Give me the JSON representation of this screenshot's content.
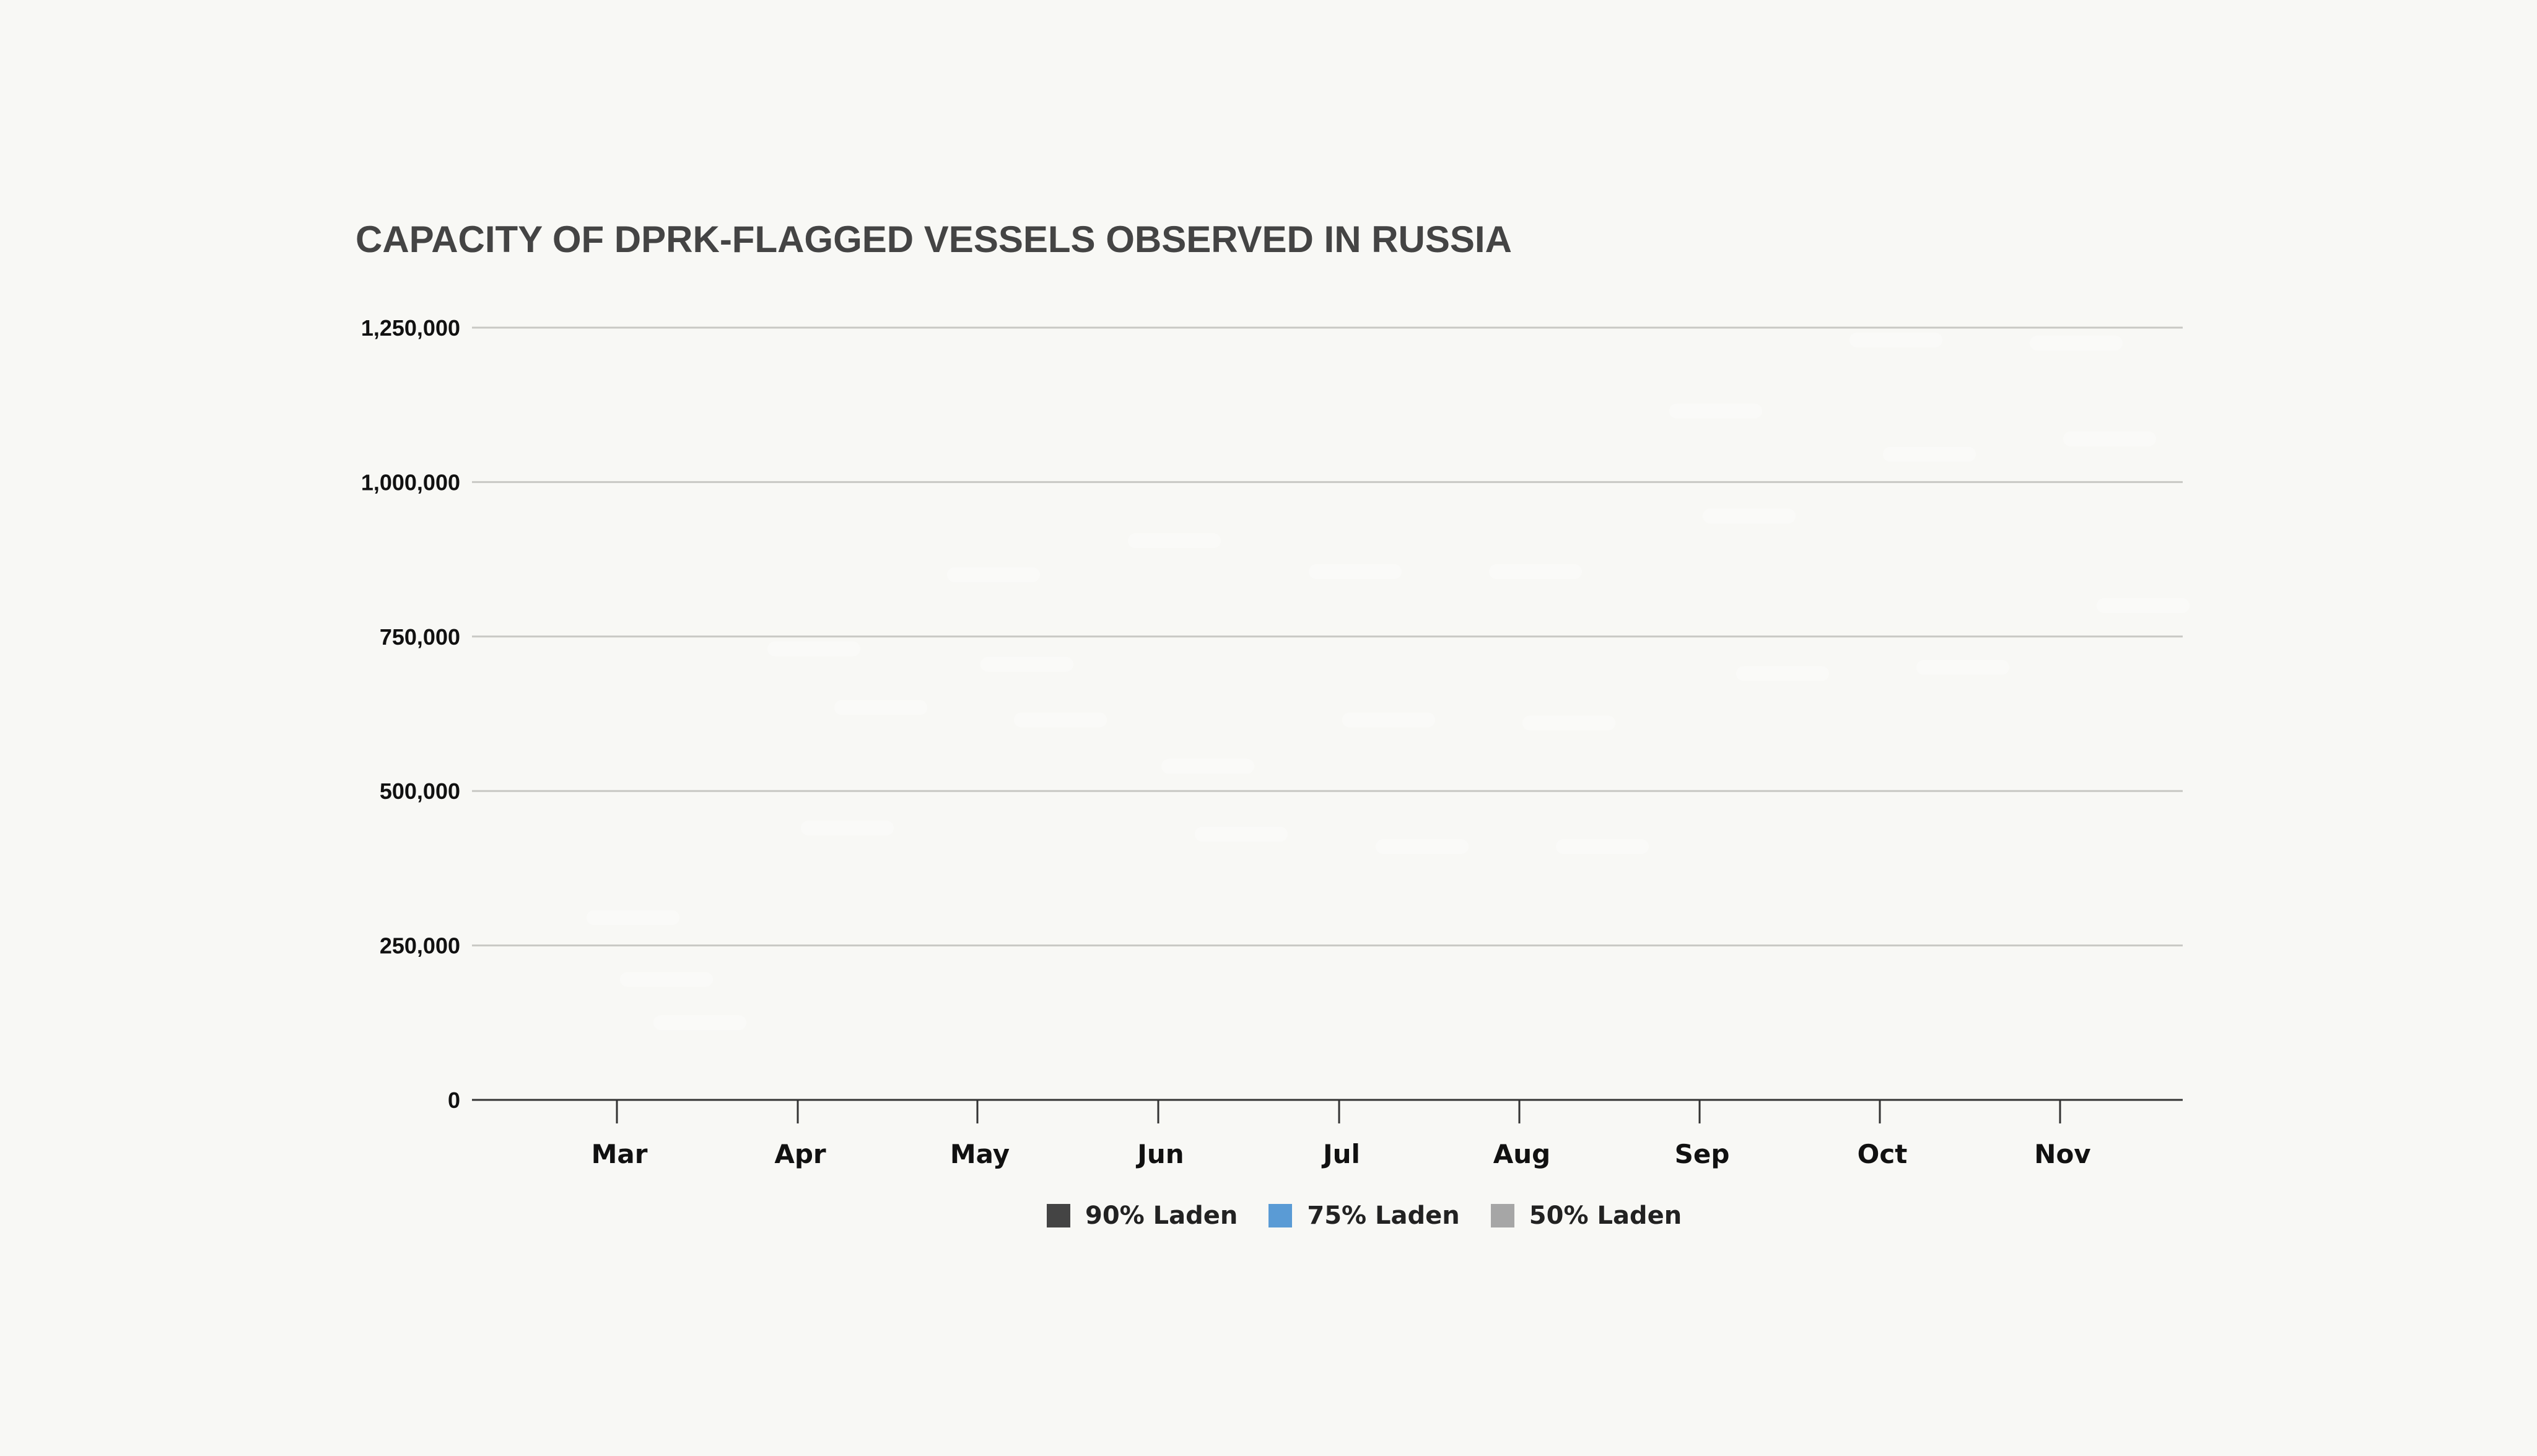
{
  "chart_data": {
    "type": "bar",
    "title": "CAPACITY OF DPRK-FLAGGED VESSELS OBSERVED IN RUSSIA",
    "xlabel": "",
    "ylabel": "",
    "ylim": [
      0,
      1250000
    ],
    "y_ticks": [
      0,
      250000,
      500000,
      750000,
      1000000,
      1250000
    ],
    "y_tick_labels": [
      "0",
      "250,000",
      "500,000",
      "750,000",
      "1,000,000",
      "1,250,000"
    ],
    "categories": [
      "Mar",
      "Apr",
      "May",
      "Jun",
      "Jul",
      "Aug",
      "Sep",
      "Oct",
      "Nov"
    ],
    "series": [
      {
        "name": "90% Laden",
        "color": "#444444",
        "values": [
          295000,
          730000,
          850000,
          905000,
          855000,
          855000,
          1115000,
          1230000,
          1225000
        ]
      },
      {
        "name": "75% Laden",
        "color": "#5a9bd5",
        "values": [
          195000,
          440000,
          705000,
          540000,
          615000,
          610000,
          945000,
          1045000,
          1070000
        ]
      },
      {
        "name": "50% Laden",
        "color": "#a6a6a6",
        "values": [
          125000,
          635000,
          615000,
          430000,
          410000,
          410000,
          690000,
          700000,
          800000
        ]
      }
    ],
    "grid": true,
    "legend_position": "bottom-center"
  }
}
